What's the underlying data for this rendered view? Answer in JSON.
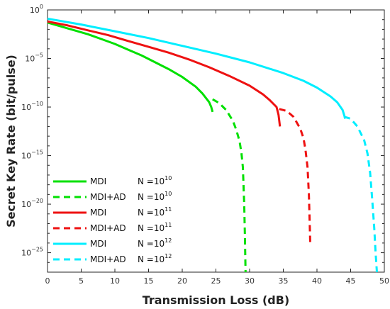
{
  "chart_data": {
    "type": "line",
    "xlabel": "Transmission Loss (dB)",
    "ylabel": "Secret Key Rate (bit/pulse)",
    "xlim": [
      0,
      50
    ],
    "ylim_log10": [
      -27,
      0
    ],
    "y_scale": "log",
    "grid": false,
    "legend_placement": "bottom-left",
    "x_ticks": [
      0,
      5,
      10,
      15,
      20,
      25,
      30,
      35,
      40,
      45,
      50
    ],
    "y_ticks": [
      {
        "exp": 0,
        "base": "10",
        "sup": "0"
      },
      {
        "exp": -5,
        "base": "10",
        "sup": "−5"
      },
      {
        "exp": -10,
        "base": "10",
        "sup": "−10"
      },
      {
        "exp": -15,
        "base": "10",
        "sup": "−15"
      },
      {
        "exp": -20,
        "base": "10",
        "sup": "−20"
      },
      {
        "exp": -25,
        "base": "10",
        "sup": "−25"
      }
    ],
    "series": [
      {
        "label": "MDI",
        "n_label": "N =10",
        "n_exp": "10",
        "color": "#00e000",
        "dash": false,
        "points": [
          [
            0,
            -1.3
          ],
          [
            2,
            -1.7
          ],
          [
            4,
            -2.1
          ],
          [
            6,
            -2.5
          ],
          [
            8,
            -3.0
          ],
          [
            10,
            -3.5
          ],
          [
            12,
            -4.1
          ],
          [
            14,
            -4.7
          ],
          [
            16,
            -5.4
          ],
          [
            18,
            -6.1
          ],
          [
            20,
            -6.9
          ],
          [
            22,
            -7.9
          ],
          [
            23,
            -8.6
          ],
          [
            24,
            -9.5
          ],
          [
            24.3,
            -10.0
          ],
          [
            24.5,
            -10.5
          ]
        ]
      },
      {
        "label": "MDI+AD",
        "n_label": "N =10",
        "n_exp": "10",
        "color": "#00e000",
        "dash": true,
        "points": [
          [
            24.5,
            -9.2
          ],
          [
            25.5,
            -9.6
          ],
          [
            26.5,
            -10.3
          ],
          [
            27.5,
            -11.4
          ],
          [
            28,
            -12.3
          ],
          [
            28.5,
            -13.5
          ],
          [
            28.8,
            -14.8
          ],
          [
            29,
            -16.2
          ],
          [
            29.2,
            -20.0
          ],
          [
            29.3,
            -23.0
          ],
          [
            29.4,
            -27.0
          ]
        ]
      },
      {
        "label": "MDI",
        "n_label": "N =10",
        "n_exp": "11",
        "color": "#ee1111",
        "dash": false,
        "points": [
          [
            0,
            -1.2
          ],
          [
            3,
            -1.6
          ],
          [
            6,
            -2.1
          ],
          [
            9,
            -2.6
          ],
          [
            12,
            -3.2
          ],
          [
            15,
            -3.8
          ],
          [
            18,
            -4.4
          ],
          [
            21,
            -5.1
          ],
          [
            24,
            -5.9
          ],
          [
            27,
            -6.8
          ],
          [
            30,
            -7.8
          ],
          [
            32,
            -8.7
          ],
          [
            33,
            -9.3
          ],
          [
            34,
            -10.0
          ],
          [
            34.3,
            -10.8
          ],
          [
            34.5,
            -12.0
          ]
        ]
      },
      {
        "label": "MDI+AD",
        "n_label": "N =10",
        "n_exp": "11",
        "color": "#ee1111",
        "dash": true,
        "points": [
          [
            34.4,
            -10.2
          ],
          [
            35.5,
            -10.4
          ],
          [
            36.5,
            -11.0
          ],
          [
            37.5,
            -12.2
          ],
          [
            38,
            -13.2
          ],
          [
            38.3,
            -14.4
          ],
          [
            38.6,
            -16.2
          ],
          [
            38.8,
            -19.0
          ],
          [
            38.9,
            -21.5
          ],
          [
            39,
            -24.0
          ]
        ]
      },
      {
        "label": "MDI",
        "n_label": "N =10",
        "n_exp": "12",
        "color": "#00eeff",
        "dash": false,
        "points": [
          [
            0,
            -0.9
          ],
          [
            5,
            -1.5
          ],
          [
            10,
            -2.2
          ],
          [
            15,
            -2.9
          ],
          [
            20,
            -3.7
          ],
          [
            25,
            -4.5
          ],
          [
            30,
            -5.4
          ],
          [
            35,
            -6.5
          ],
          [
            38,
            -7.3
          ],
          [
            40,
            -8.0
          ],
          [
            42,
            -8.9
          ],
          [
            43,
            -9.5
          ],
          [
            43.8,
            -10.3
          ],
          [
            44.2,
            -11.2
          ]
        ]
      },
      {
        "label": "MDI+AD",
        "n_label": "N =10",
        "n_exp": "12",
        "color": "#00eeff",
        "dash": true,
        "points": [
          [
            44,
            -11.0
          ],
          [
            45,
            -11.2
          ],
          [
            46,
            -12.0
          ],
          [
            47,
            -13.4
          ],
          [
            47.5,
            -14.8
          ],
          [
            47.9,
            -16.8
          ],
          [
            48.2,
            -19.5
          ],
          [
            48.5,
            -22.5
          ],
          [
            48.7,
            -25.0
          ],
          [
            48.9,
            -27.0
          ]
        ]
      }
    ]
  }
}
